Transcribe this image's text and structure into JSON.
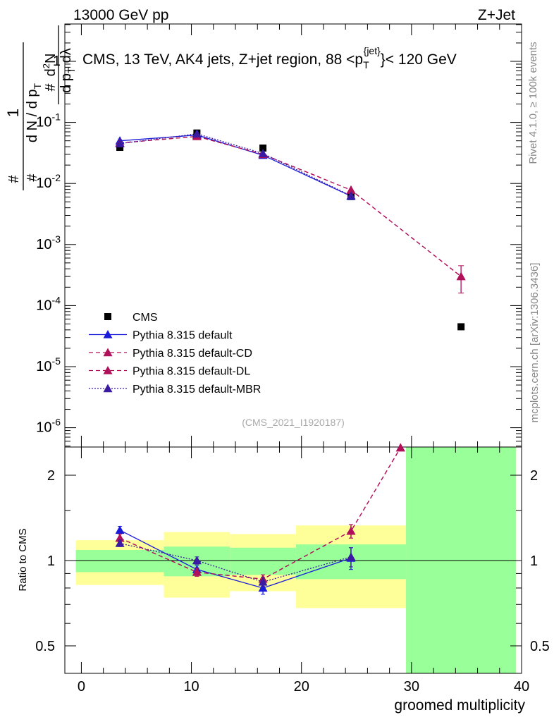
{
  "header": {
    "left": "13000 GeV pp",
    "right": "Z+Jet"
  },
  "side": {
    "rivet": "Rivet 4.1.0, ≥ 100k events",
    "mcplots": "mcplots.cern.ch [arXiv:1306.3436]"
  },
  "colors": {
    "cms": "#000000",
    "default": "#1a1adb",
    "cd": "#b0105a",
    "dl": "#b0105a",
    "mbr": "#3a1aa0",
    "band_inner": "#99ff99",
    "band_outer": "#ffff99"
  },
  "chart_data": [
    {
      "type": "line",
      "panel": "main",
      "title": "CMS, 13 TeV, AK4 jets, Z+jet region, 88 <p_T^{jet}< 120 GeV",
      "ylabel": "1/(dN/dp_T) d²N/(dp_T dλ)",
      "yscale": "log",
      "ylim": [
        5e-07,
        4
      ],
      "xlim": [
        -1.5,
        40
      ],
      "analysis_tag": "(CMS_2021_I1920187)",
      "y_ticks": [
        "1",
        "10^-1",
        "10^-2",
        "10^-3",
        "10^-4",
        "10^-5",
        "10^-6"
      ],
      "legend_position": "bottom-left",
      "series": [
        {
          "name": "CMS",
          "style": "square",
          "x": [
            3.5,
            10.5,
            16.5,
            24.5,
            34.5
          ],
          "y": [
            0.039,
            0.067,
            0.038,
            0.0061,
            4.5e-05
          ]
        },
        {
          "name": "Pythia 8.315 default",
          "style": "solid-triangle",
          "x": [
            3.5,
            10.5,
            16.5,
            24.5
          ],
          "y": [
            0.05,
            0.062,
            0.029,
            0.0062
          ]
        },
        {
          "name": "Pythia 8.315 default-CD",
          "style": "dashed-triangle",
          "x": [
            3.5,
            10.5,
            16.5,
            24.5,
            34.5
          ],
          "y": [
            0.046,
            0.059,
            0.03,
            0.0078,
            0.0003
          ]
        },
        {
          "name": "Pythia 8.315 default-DL",
          "style": "dashed-triangle",
          "x": [
            3.5,
            10.5,
            16.5,
            24.5,
            34.5
          ],
          "y": [
            0.046,
            0.059,
            0.03,
            0.0078,
            0.0003
          ]
        },
        {
          "name": "Pythia 8.315 default-MBR",
          "style": "dotted-triangle",
          "x": [
            3.5,
            10.5,
            16.5,
            24.5
          ],
          "y": [
            0.045,
            0.065,
            0.031,
            0.0063
          ]
        }
      ],
      "error_last_cd": {
        "x": 34.5,
        "low": 0.00016,
        "high": 0.00045
      }
    },
    {
      "type": "line",
      "panel": "ratio",
      "ylabel": "Ratio to CMS",
      "xlabel": "groomed multiplicity",
      "yscale": "log",
      "ylim": [
        0.4,
        2.4
      ],
      "xlim": [
        -1.5,
        40
      ],
      "x_ticks": [
        "0",
        "10",
        "20",
        "30",
        "40"
      ],
      "y_ticks": [
        "0.5",
        "1",
        "2"
      ],
      "bands": [
        {
          "x0": -0.5,
          "x1": 7.5,
          "inner": [
            0.91,
            1.09
          ],
          "outer": [
            0.82,
            1.18
          ]
        },
        {
          "x0": 7.5,
          "x1": 13.5,
          "inner": [
            0.88,
            1.12
          ],
          "outer": [
            0.74,
            1.26
          ]
        },
        {
          "x0": 13.5,
          "x1": 19.5,
          "inner": [
            0.89,
            1.11
          ],
          "outer": [
            0.78,
            1.24
          ]
        },
        {
          "x0": 19.5,
          "x1": 29.5,
          "inner": [
            0.86,
            1.14
          ],
          "outer": [
            0.68,
            1.33
          ]
        },
        {
          "x0": 29.5,
          "x1": 39.5,
          "inner": [
            0.3,
            3.0
          ],
          "outer": [
            0.3,
            3.0
          ]
        }
      ],
      "series": [
        {
          "name": "Pythia 8.315 default",
          "x": [
            3.5,
            10.5,
            16.5,
            24.5
          ],
          "y": [
            1.28,
            0.93,
            0.8,
            1.02
          ],
          "err": [
            0.04,
            0.03,
            0.04,
            0.09
          ]
        },
        {
          "name": "Pythia 8.315 default-CD",
          "x": [
            3.5,
            10.5,
            16.5,
            24.5,
            29.0
          ],
          "y": [
            1.2,
            0.91,
            0.86,
            1.27,
            2.5
          ],
          "err": [
            0.04,
            0.03,
            0.03,
            0.07,
            0
          ]
        },
        {
          "name": "Pythia 8.315 default-DL",
          "x": [
            3.5,
            10.5,
            16.5,
            24.5,
            29.0
          ],
          "y": [
            1.2,
            0.91,
            0.86,
            1.27,
            2.5
          ],
          "err": [
            0.04,
            0.03,
            0.03,
            0.07,
            0
          ]
        },
        {
          "name": "Pythia 8.315 default-MBR",
          "x": [
            3.5,
            10.5,
            16.5,
            24.5
          ],
          "y": [
            1.15,
            1.0,
            0.84,
            1.03
          ],
          "err": [
            0.03,
            0.03,
            0.03,
            0.08
          ]
        }
      ]
    }
  ]
}
